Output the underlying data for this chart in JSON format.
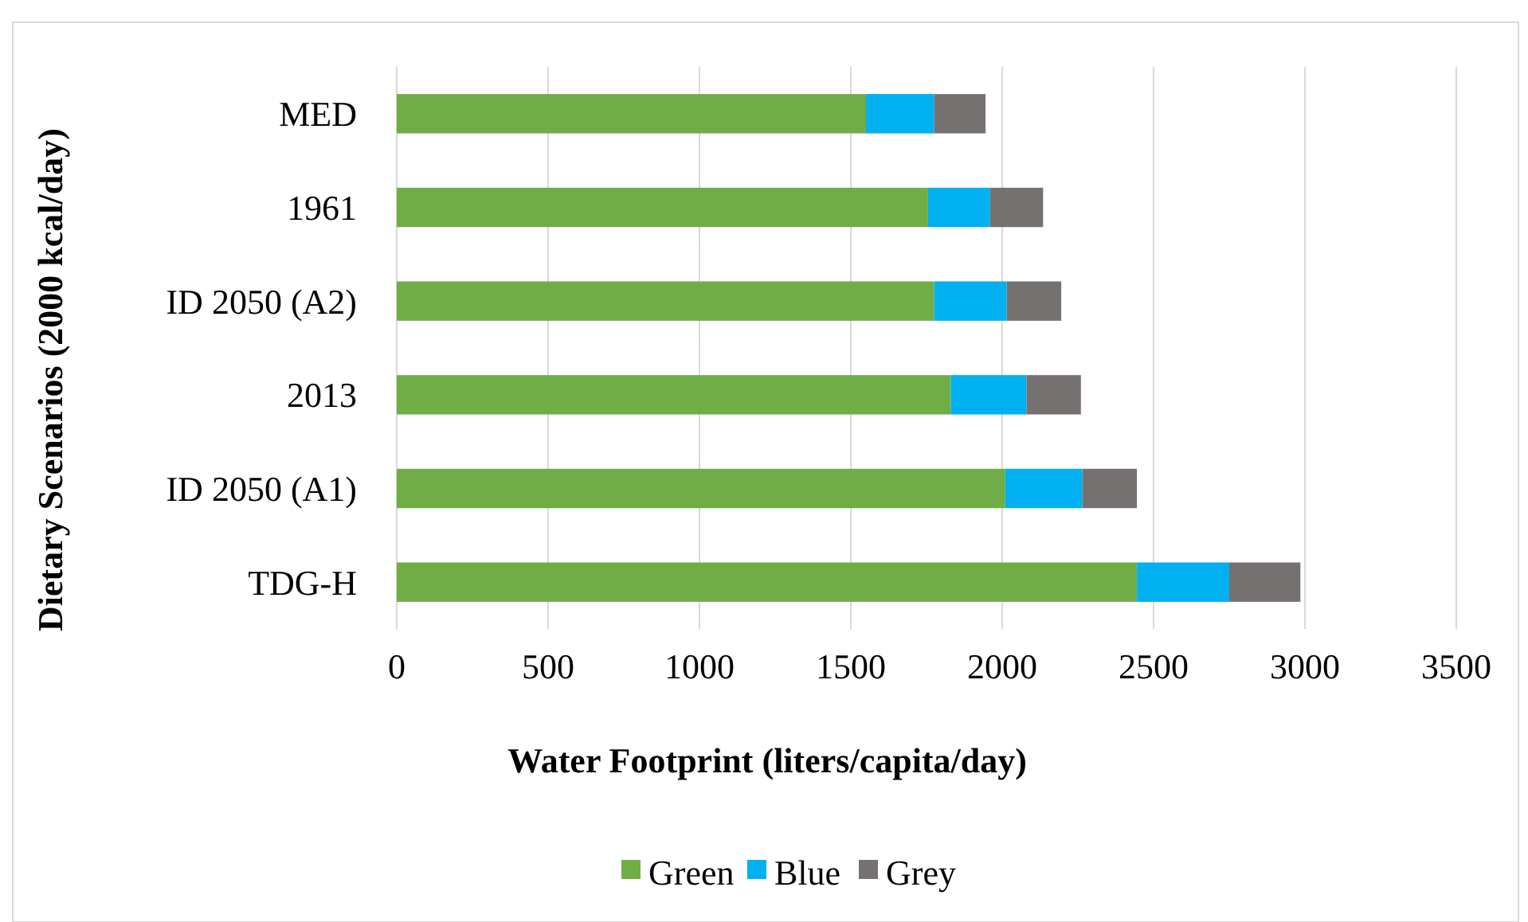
{
  "chart_data": {
    "type": "bar",
    "orientation": "horizontal",
    "stacked": true,
    "categories": [
      "MED",
      "1961",
      "ID 2050 (A2)",
      "2013",
      "ID 2050 (A1)",
      "TDG-H"
    ],
    "series": [
      {
        "name": "Green",
        "color": "#70ad47",
        "values": [
          1550,
          1755,
          1775,
          1830,
          2010,
          2445
        ]
      },
      {
        "name": "Blue",
        "color": "#00b0f0",
        "values": [
          225,
          205,
          240,
          250,
          255,
          305
        ]
      },
      {
        "name": "Grey",
        "color": "#767171",
        "values": [
          170,
          175,
          180,
          180,
          180,
          235
        ]
      }
    ],
    "xlim": [
      0,
      3500
    ],
    "xticks": [
      0,
      500,
      1000,
      1500,
      2000,
      2500,
      3000,
      3500
    ],
    "xlabel": "Water Footprint (liters/capita/day)",
    "ylabel": "Dietary Scenarios (2000 kcal/day)",
    "grid": "x",
    "legend": "bottom"
  }
}
